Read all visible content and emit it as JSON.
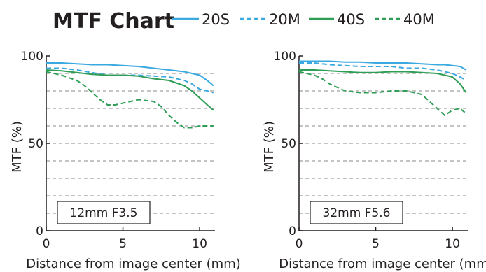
{
  "title": "MTF Chart",
  "colors": {
    "blue": "#3aa9e0",
    "green": "#2e9e56",
    "text": "#231f20",
    "grid": "#8a8a8a"
  },
  "legend": [
    {
      "label": "20S",
      "color": "#3aa9e0",
      "dash": "solid"
    },
    {
      "label": "20M",
      "color": "#3aa9e0",
      "dash": "dashed"
    },
    {
      "label": "40S",
      "color": "#2e9e56",
      "dash": "solid"
    },
    {
      "label": "40M",
      "color": "#2e9e56",
      "dash": "dashed"
    }
  ],
  "chart_data": [
    {
      "type": "line",
      "annotation": "12mm F3.5",
      "xlabel": "Distance from image center (mm)",
      "ylabel": "MTF (%)",
      "xlim": [
        0,
        11
      ],
      "ylim": [
        0,
        100
      ],
      "xticks": [
        0,
        5,
        10
      ],
      "yticks": [
        0,
        50,
        100
      ],
      "grid": "horizontal dashed every 10%",
      "series": [
        {
          "name": "20S",
          "color": "#3aa9e0",
          "dash": "solid",
          "x": [
            0,
            1,
            2,
            3,
            4,
            5,
            6,
            7,
            8,
            9,
            9.5,
            10,
            10.5,
            10.9
          ],
          "y": [
            96,
            96,
            95.5,
            95,
            95,
            94.5,
            94,
            93,
            92,
            91,
            90,
            89,
            86,
            83
          ]
        },
        {
          "name": "20M",
          "color": "#3aa9e0",
          "dash": "dashed",
          "x": [
            0,
            1,
            2,
            3,
            4,
            5,
            6,
            7,
            8,
            9,
            9.5,
            10,
            10.5,
            10.9
          ],
          "y": [
            93,
            93,
            92,
            90.5,
            89,
            89,
            89,
            88.5,
            88,
            86,
            84,
            81,
            80,
            79
          ]
        },
        {
          "name": "40S",
          "color": "#2e9e56",
          "dash": "solid",
          "x": [
            0,
            1,
            2,
            3,
            4,
            5,
            6,
            7,
            8,
            9,
            9.5,
            10,
            10.5,
            10.9
          ],
          "y": [
            92,
            91.5,
            90.5,
            89.5,
            89,
            89,
            88.5,
            87,
            86,
            83,
            80,
            76,
            72,
            69
          ]
        },
        {
          "name": "40M",
          "color": "#2e9e56",
          "dash": "dashed",
          "x": [
            0,
            1,
            2,
            2.5,
            3,
            3.5,
            4,
            4.5,
            5,
            6,
            7,
            7.5,
            8,
            8.5,
            9,
            9.5,
            10,
            10.5,
            10.9
          ],
          "y": [
            91,
            89,
            86,
            83,
            79,
            75,
            72,
            72,
            73,
            75,
            74,
            71,
            66,
            62,
            59,
            59,
            60,
            60,
            60
          ]
        }
      ]
    },
    {
      "type": "line",
      "annotation": "32mm F5.6",
      "xlabel": "Distance from image center (mm)",
      "ylabel": "MTF (%)",
      "xlim": [
        0,
        11
      ],
      "ylim": [
        0,
        100
      ],
      "xticks": [
        0,
        5,
        10
      ],
      "yticks": [
        0,
        50,
        100
      ],
      "grid": "horizontal dashed every 10%",
      "series": [
        {
          "name": "20S",
          "color": "#3aa9e0",
          "dash": "solid",
          "x": [
            0,
            1,
            2,
            3,
            4,
            5,
            6,
            7,
            8,
            9,
            9.5,
            10,
            10.5,
            10.9
          ],
          "y": [
            97,
            97,
            97,
            96.5,
            96.5,
            96,
            96,
            96,
            95.5,
            95,
            95,
            94.5,
            94,
            92
          ]
        },
        {
          "name": "20M",
          "color": "#3aa9e0",
          "dash": "dashed",
          "x": [
            0,
            1,
            2,
            3,
            4,
            5,
            6,
            7,
            8,
            9,
            9.5,
            10,
            10.5,
            10.9
          ],
          "y": [
            96,
            96,
            95,
            94.5,
            94,
            94,
            94,
            93,
            93,
            92,
            91,
            90,
            88,
            86
          ]
        },
        {
          "name": "40S",
          "color": "#2e9e56",
          "dash": "solid",
          "x": [
            0,
            1,
            2,
            3,
            4,
            5,
            6,
            7,
            8,
            9,
            9.5,
            10,
            10.5,
            10.9
          ],
          "y": [
            92,
            92,
            91.5,
            91,
            90.5,
            90.5,
            91,
            91,
            90.5,
            90,
            89,
            88,
            84,
            79
          ]
        },
        {
          "name": "40M",
          "color": "#2e9e56",
          "dash": "dashed",
          "x": [
            0,
            1,
            1.5,
            2,
            2.5,
            3,
            4,
            5,
            6,
            7,
            8,
            8.5,
            9,
            9.5,
            10,
            10.5,
            10.9
          ],
          "y": [
            91,
            89,
            87,
            84,
            82,
            80,
            79,
            79,
            80,
            80,
            78,
            74,
            70,
            66,
            69,
            70,
            67
          ]
        }
      ]
    }
  ]
}
